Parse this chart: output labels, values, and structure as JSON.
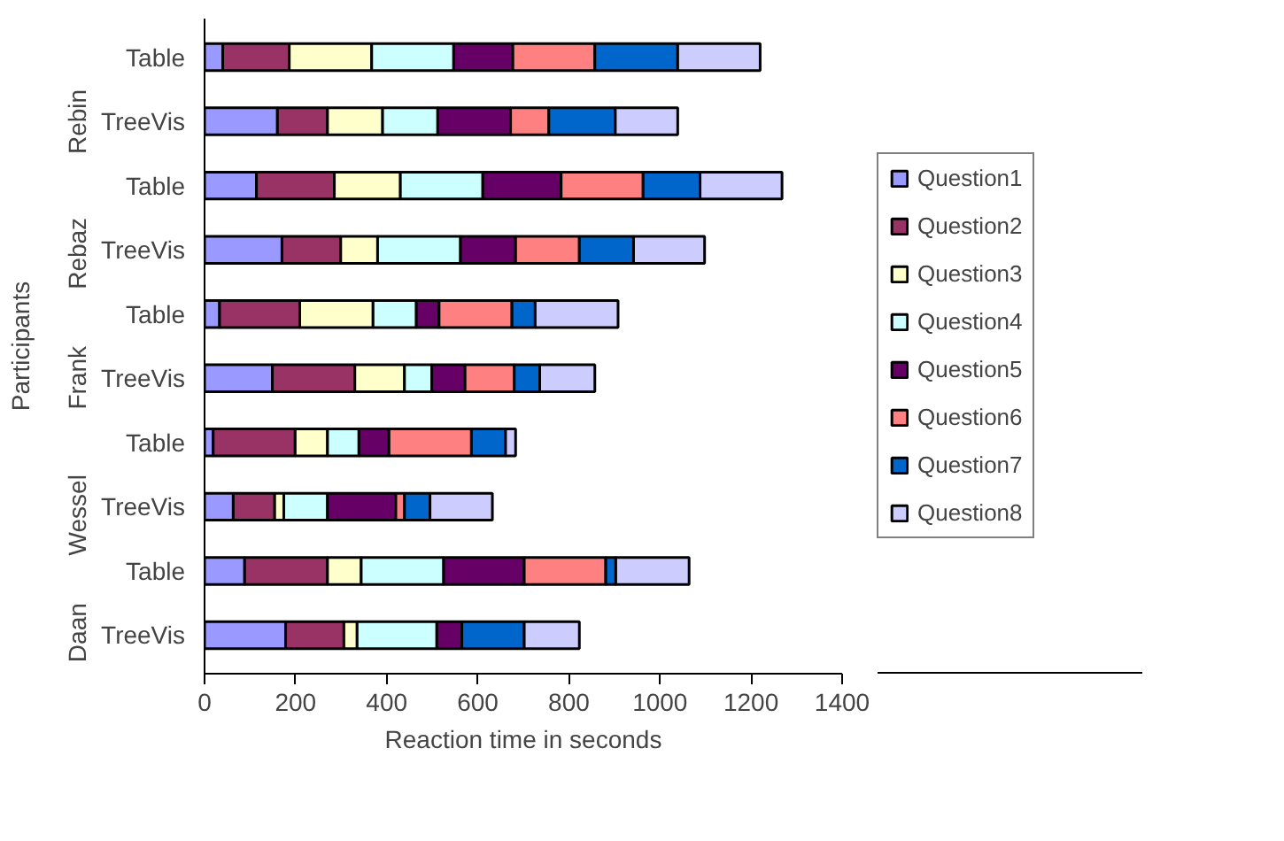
{
  "chart_data": {
    "type": "bar",
    "orientation": "horizontal",
    "stacked": true,
    "xlabel": "Reaction time in seconds",
    "ylabel": "Participants",
    "categories": [
      "Table",
      "TreeVis",
      "Table",
      "TreeVis",
      "Table",
      "TreeVis",
      "Table",
      "TreeVis",
      "Table",
      "TreeVis"
    ],
    "annotations": [
      "Rebin",
      "Rebaz",
      "Frank",
      "Wessel",
      "Daan"
    ],
    "series": [
      {
        "name": "Question1",
        "color": "#9999ff",
        "values": [
          40,
          160,
          114,
          170,
          33,
          149,
          19,
          63,
          88,
          178
        ]
      },
      {
        "name": "Question2",
        "color": "#993366",
        "values": [
          146,
          110,
          171,
          129,
          176,
          181,
          180,
          91,
          182,
          128
        ]
      },
      {
        "name": "Question3",
        "color": "#ffffcc",
        "values": [
          181,
          121,
          145,
          81,
          161,
          109,
          71,
          20,
          74,
          29
        ]
      },
      {
        "name": "Question4",
        "color": "#ccffff",
        "values": [
          180,
          121,
          181,
          182,
          95,
          60,
          69,
          96,
          181,
          175
        ]
      },
      {
        "name": "Question5",
        "color": "#660066",
        "values": [
          130,
          160,
          172,
          121,
          50,
          73,
          66,
          150,
          177,
          55
        ]
      },
      {
        "name": "Question6",
        "color": "#ff8080",
        "values": [
          180,
          84,
          180,
          140,
          160,
          108,
          181,
          19,
          179,
          0
        ]
      },
      {
        "name": "Question7",
        "color": "#0066cc",
        "values": [
          182,
          146,
          125,
          119,
          51,
          56,
          75,
          56,
          22,
          137
        ]
      },
      {
        "name": "Question8",
        "color": "#ccccff",
        "values": [
          181,
          137,
          180,
          156,
          182,
          121,
          22,
          137,
          161,
          121
        ]
      }
    ],
    "xlim": [
      0,
      1400
    ],
    "xticks": [
      0,
      200,
      400,
      600,
      800,
      1000,
      1200,
      1400
    ],
    "grid": false,
    "legend": "right"
  }
}
